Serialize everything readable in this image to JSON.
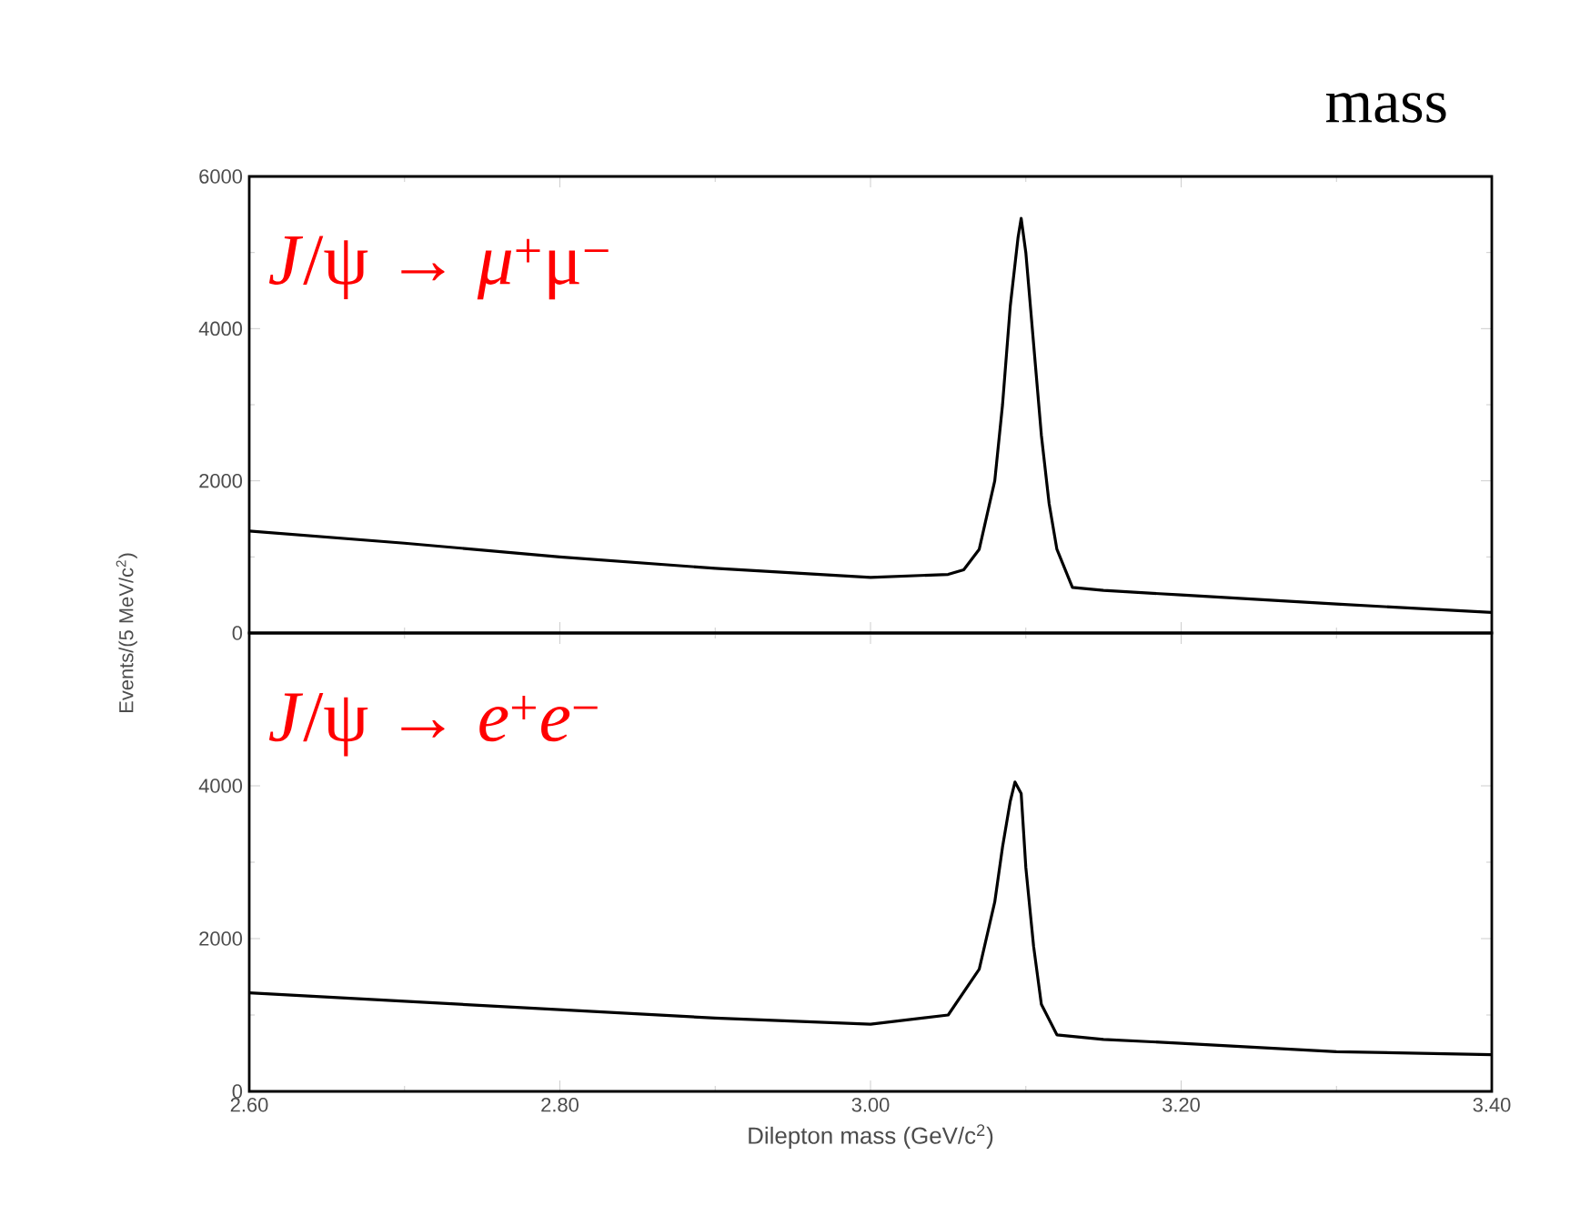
{
  "chart_data": [
    {
      "type": "line",
      "title": "mass",
      "ylabel": "Events/(5 MeV/c$^{2}$)",
      "annotations": [
        "*J*/ψ → *μ*$^{+}$μ$^{−}$"
      ],
      "tick_labels": "y",
      "xlim": [
        2.6,
        3.4
      ],
      "xticks": [
        {
          "value": 2.6,
          "label": null
        },
        {
          "value": 2.8,
          "label": null
        },
        {
          "value": 3.0,
          "label": null
        },
        {
          "value": 3.2,
          "label": null
        },
        {
          "value": 3.4,
          "label": null
        }
      ],
      "ylim": [
        0,
        6000
      ],
      "yticks": [
        0,
        2000,
        4000,
        6000
      ],
      "series": [
        {
          "color": "#000000",
          "x": [
            2.6,
            2.7,
            2.8,
            2.9,
            3.0,
            3.05,
            3.06,
            3.07,
            3.08,
            3.085,
            3.09,
            3.095,
            3.097,
            3.1,
            3.105,
            3.11,
            3.115,
            3.12,
            3.13,
            3.15,
            3.2,
            3.3,
            3.4
          ],
          "values": [
            1340,
            1180,
            1000,
            850,
            730,
            770,
            830,
            1100,
            2000,
            3000,
            4300,
            5200,
            5450,
            5000,
            3800,
            2600,
            1700,
            1100,
            600,
            560,
            500,
            380,
            270
          ]
        }
      ]
    },
    {
      "type": "line",
      "xlabel": "Dilepton mass (GeV/c$^{2}$)",
      "annotations": [
        "*J*/ψ → *e*$^{+}$*e*$^{−}$"
      ],
      "xlim": [
        2.6,
        3.4
      ],
      "xticks": [
        {
          "value": 2.6,
          "label": "2.60"
        },
        {
          "value": 2.8,
          "label": "2.80"
        },
        {
          "value": 3.0,
          "label": "3.00"
        },
        {
          "value": 3.2,
          "label": "3.20"
        },
        {
          "value": 3.4,
          "label": "3.40"
        }
      ],
      "ylim": [
        0,
        6000
      ],
      "yticks": [
        0,
        2000,
        4000
      ],
      "series": [
        {
          "color": "#000000",
          "x": [
            2.6,
            2.7,
            2.8,
            2.9,
            3.0,
            3.05,
            3.07,
            3.08,
            3.085,
            3.09,
            3.093,
            3.097,
            3.1,
            3.105,
            3.11,
            3.12,
            3.15,
            3.2,
            3.3,
            3.4
          ],
          "values": [
            1290,
            1180,
            1070,
            960,
            880,
            1000,
            1600,
            2480,
            3200,
            3800,
            4050,
            3900,
            2930,
            1900,
            1140,
            740,
            680,
            630,
            520,
            480
          ]
        }
      ]
    }
  ]
}
